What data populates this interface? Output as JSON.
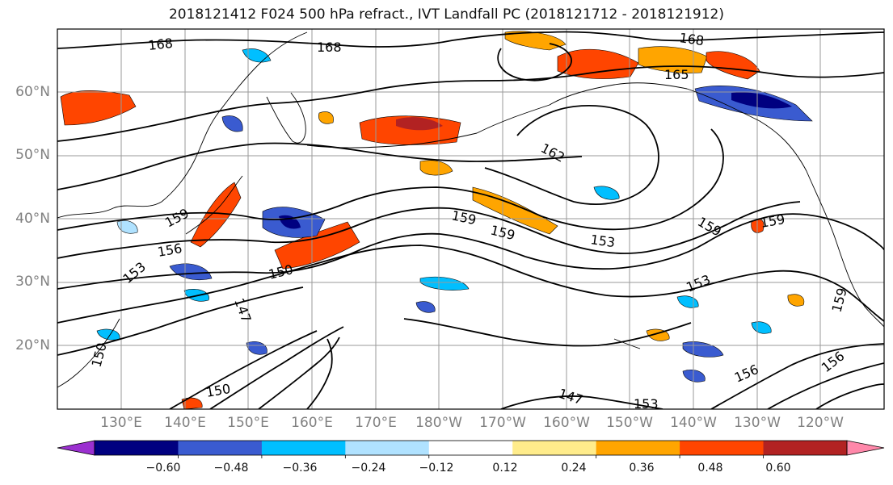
{
  "title": "2018121412 F024 500 hPa refract., IVT Landfall PC (2018121712 - 2018121912)",
  "map": {
    "lat_labels": [
      "60°N",
      "50°N",
      "40°N",
      "30°N",
      "20°N"
    ],
    "lon_labels": [
      "130°E",
      "140°E",
      "150°E",
      "160°E",
      "170°E",
      "180°W",
      "170°W",
      "160°W",
      "150°W",
      "140°W",
      "130°W",
      "120°W"
    ],
    "contour_labels": [
      "168",
      "168",
      "168",
      "165",
      "162",
      "159",
      "159",
      "159",
      "159",
      "159",
      "156",
      "153",
      "153",
      "153",
      "150",
      "147",
      "150",
      "147",
      "159",
      "156",
      "150",
      "153",
      "156"
    ]
  },
  "colorbar": {
    "tick_labels": [
      "−0.60",
      "−0.48",
      "−0.36",
      "−0.24",
      "−0.12",
      "0.12",
      "0.24",
      "0.36",
      "0.48",
      "0.60"
    ],
    "colors": [
      "#9b30d0",
      "#000080",
      "#3a5bd0",
      "#00bfff",
      "#b0e2ff",
      "#ffffff",
      "#ffec8b",
      "#ffa500",
      "#ff4500",
      "#b22222",
      "#ff88aa"
    ]
  }
}
